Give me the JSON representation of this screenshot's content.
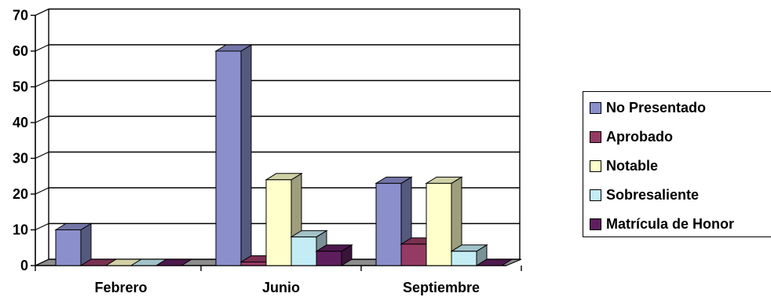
{
  "chart_data": {
    "type": "bar",
    "categories": [
      "Febrero",
      "Junio",
      "Septiembre"
    ],
    "series": [
      {
        "name": "No Presentado",
        "values": [
          10,
          60,
          23
        ],
        "color": "#8b8fcb"
      },
      {
        "name": "Aprobado",
        "values": [
          0,
          1,
          6
        ],
        "color": "#953a63"
      },
      {
        "name": "Notable",
        "values": [
          0,
          24,
          23
        ],
        "color": "#ffffcc"
      },
      {
        "name": "Sobresaliente",
        "values": [
          0,
          8,
          4
        ],
        "color": "#c4ecf4"
      },
      {
        "name": "Matrícula de Honor",
        "values": [
          0,
          4,
          0
        ],
        "color": "#5e1e5e"
      }
    ],
    "ylim": [
      0,
      70
    ],
    "yticks": [
      "0",
      "10",
      "20",
      "30",
      "40",
      "50",
      "60",
      "70"
    ],
    "grid": true,
    "legend_position": "right",
    "style": "3d-clustered-column"
  }
}
